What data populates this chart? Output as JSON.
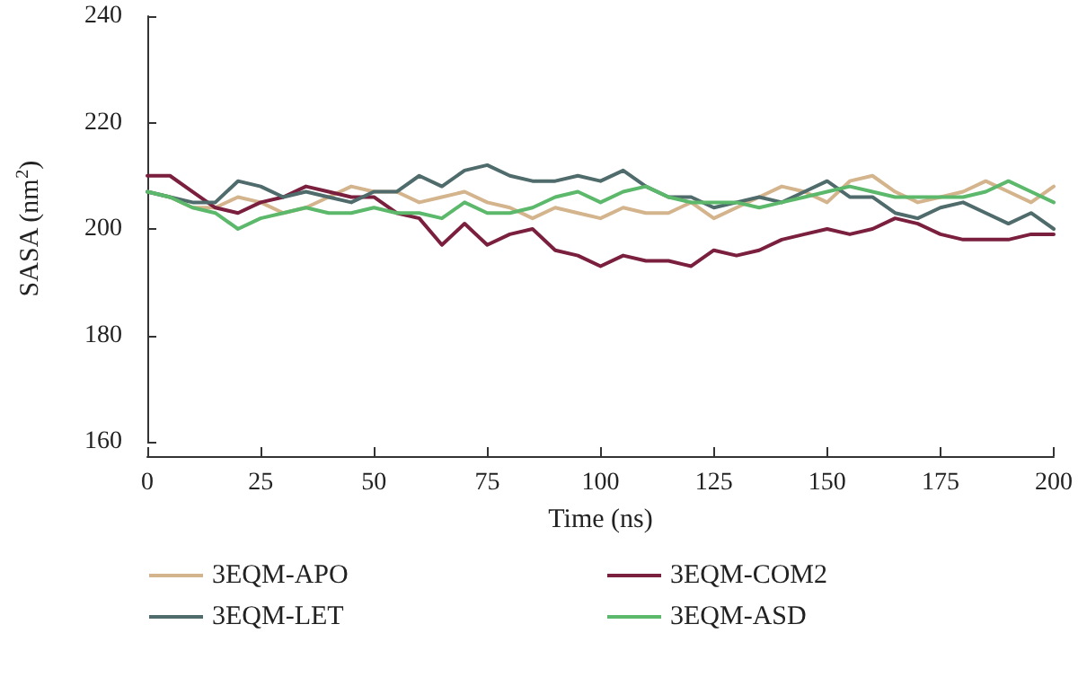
{
  "chart_data": {
    "type": "line",
    "xlabel": "Time (ns)",
    "ylabel": "SASA (nm$^{2}$)",
    "x": [
      0,
      5,
      10,
      15,
      20,
      25,
      30,
      35,
      40,
      45,
      50,
      55,
      60,
      65,
      70,
      75,
      80,
      85,
      90,
      95,
      100,
      105,
      110,
      115,
      120,
      125,
      130,
      135,
      140,
      145,
      150,
      155,
      160,
      165,
      170,
      175,
      180,
      185,
      190,
      195,
      200
    ],
    "series": [
      {
        "name": "3EQM-APO",
        "color": "#d4b48c",
        "values": [
          207,
          206,
          204,
          204,
          206,
          205,
          203,
          204,
          206,
          208,
          207,
          207,
          205,
          206,
          207,
          205,
          204,
          202,
          204,
          203,
          202,
          204,
          203,
          203,
          205,
          202,
          204,
          206,
          208,
          207,
          205,
          209,
          210,
          207,
          205,
          206,
          207,
          209,
          207,
          205,
          208
        ]
      },
      {
        "name": "3EQM-COM2",
        "color": "#7a1f3d",
        "values": [
          210,
          210,
          207,
          204,
          203,
          205,
          206,
          208,
          207,
          206,
          206,
          203,
          202,
          197,
          201,
          197,
          199,
          200,
          196,
          195,
          193,
          195,
          194,
          194,
          193,
          196,
          195,
          196,
          198,
          199,
          200,
          199,
          200,
          202,
          201,
          199,
          198,
          198,
          198,
          199,
          199
        ]
      },
      {
        "name": "3EQM-LET",
        "color": "#4f6b6b",
        "values": [
          207,
          206,
          205,
          205,
          209,
          208,
          206,
          207,
          206,
          205,
          207,
          207,
          210,
          208,
          211,
          212,
          210,
          209,
          209,
          210,
          209,
          211,
          208,
          206,
          206,
          204,
          205,
          206,
          205,
          207,
          209,
          206,
          206,
          203,
          202,
          204,
          205,
          203,
          201,
          203,
          200
        ]
      },
      {
        "name": "3EQM-ASD",
        "color": "#5cb86a",
        "values": [
          207,
          206,
          204,
          203,
          200,
          202,
          203,
          204,
          203,
          203,
          204,
          203,
          203,
          202,
          205,
          203,
          203,
          204,
          206,
          207,
          205,
          207,
          208,
          206,
          205,
          205,
          205,
          204,
          205,
          206,
          207,
          208,
          207,
          206,
          206,
          206,
          206,
          207,
          209,
          207,
          205
        ]
      }
    ],
    "xlim": [
      0,
      200
    ],
    "xticks": [
      0,
      25,
      50,
      75,
      100,
      125,
      150,
      175,
      200
    ],
    "ylim": [
      160,
      240
    ],
    "yticks": [
      160,
      180,
      200,
      220,
      240
    ],
    "grid": false,
    "legend": "bottom",
    "marker": "none",
    "line_style": "solid"
  }
}
